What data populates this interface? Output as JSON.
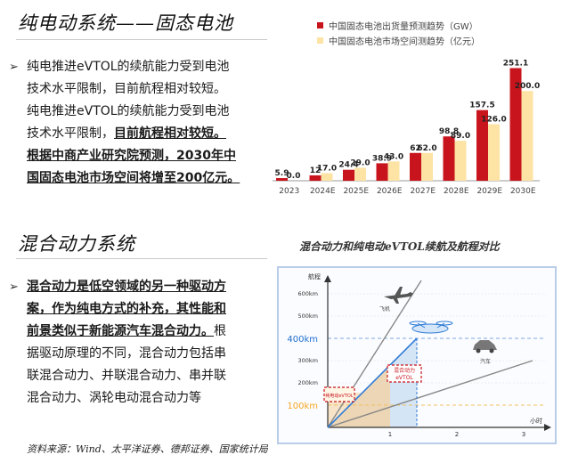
{
  "section1": {
    "title": "纯电动系统——固态电池",
    "bullet_lines": [
      "纯电推进eVTOL的续航能力受到电池",
      "技术水平限制，目前航程相对较短。",
      "纯电推进eVTOL的续航能力受到电池",
      "技术水平限制，"
    ],
    "bold_a": "目前航程相对较短。",
    "bold_lines": [
      "根据中商产业研究院预测，2030年中",
      "国固态电池市场空间将增至200亿元。"
    ]
  },
  "section2": {
    "title": "混合动力系统",
    "bold_lines": [
      "混合动力是低空领域的另一种驱动方",
      "案，作为纯电方式的补充，其性能和",
      "前景类似于新能源汽车混合动力。"
    ],
    "tail_a": "根",
    "normal_lines": [
      "据驱动原理的不同，混合动力包括串",
      "联混合动力、并联混合动力、串并联",
      "混合动力、涡轮电动混合动力等"
    ]
  },
  "chart_data": {
    "type": "bar",
    "categories": [
      "2023",
      "2024E",
      "2025E",
      "2026E",
      "2027E",
      "2028E",
      "2029E",
      "2030E"
    ],
    "series": [
      {
        "name": "中国固态电池出货量预测趋势（GW）",
        "values": [
          5.9,
          12,
          24.4,
          38.9,
          62,
          98.8,
          157.5,
          251.1
        ],
        "color": "#c8141c"
      },
      {
        "name": "中国固态电池市场空间测趋势（亿元）",
        "values": [
          0.0,
          17.0,
          29.0,
          43.0,
          62.0,
          89.0,
          126.0,
          200.0
        ],
        "color": "#fde3a4"
      }
    ],
    "value_labels": {
      "series0": [
        "5.9",
        "12",
        "24.4",
        "38.9",
        "62",
        "98.8",
        "157.5",
        "251.1"
      ],
      "series1": [
        "0.0",
        "17.0",
        "29.0",
        "43.0",
        "62.0",
        "89.0",
        "126.0",
        "200.0"
      ]
    },
    "ylim": [
      0,
      260
    ],
    "legend": "top-right",
    "grid": false
  },
  "diagram": {
    "title": "混合动力和纯电动eVTOL续航及航程对比",
    "y_axis_label": "航程",
    "x_axis_label": "小时",
    "y_ticks": [
      "600km",
      "500km",
      "400km",
      "300km",
      "200km",
      "100km"
    ],
    "x_ticks": [
      "1",
      "2",
      "3"
    ],
    "highlight_400": "400km",
    "highlight_100": "100km",
    "labels": {
      "plane": "飞机",
      "hybrid_line1": "混合动力",
      "hybrid_line2": "eVTOL",
      "car": "汽车",
      "pure_electric": "纯电动eVTOL"
    },
    "colors": {
      "highlight": "#1f6fd0",
      "orange": "#f5a623",
      "red_box": "#c8141c",
      "hybrid_line": "#2e7bd6"
    }
  },
  "source": "资料来源：Wind、太平洋证券、德邦证券、国家统计局"
}
